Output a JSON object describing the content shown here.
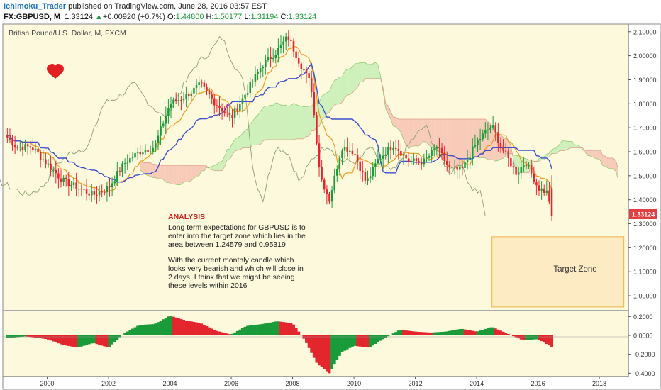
{
  "header": {
    "author": "Ichimoku_Trader",
    "published": "published on TradingView.com, June 28, 2016 03:57 EST",
    "symbol": "FX:GBPUSD, M",
    "last": "1.33124",
    "change_arrow": "▲",
    "change": "+0.00920 (+0.7%)",
    "o_label": "O:",
    "o_value": "1.44800",
    "h_label": "H:",
    "h_value": "1.50177",
    "l_label": "L:",
    "l_value": "1.31194",
    "c_label": "C:",
    "c_value": "1.33124"
  },
  "chart_data": {
    "type": "candlestick",
    "title": "British Pound/U.S. Dollar, M, FXCM",
    "x_ticks": [
      "2000",
      "2002",
      "2004",
      "2006",
      "2008",
      "2010",
      "2012",
      "2014",
      "2016",
      "2018"
    ],
    "x_range": [
      1998.6,
      2018.9
    ],
    "y_ticks": [
      "2.10000",
      "2.00000",
      "1.90000",
      "1.80000",
      "1.70000",
      "1.60000",
      "1.50000",
      "1.40000",
      "1.30000",
      "1.20000",
      "1.10000",
      "1.00000"
    ],
    "y_range": [
      0.95,
      2.12
    ],
    "price_anchors": [
      [
        1998.7,
        1.66
      ],
      [
        1999.0,
        1.62
      ],
      [
        1999.5,
        1.62
      ],
      [
        2000.0,
        1.55
      ],
      [
        2000.5,
        1.48
      ],
      [
        2001.0,
        1.45
      ],
      [
        2001.5,
        1.42
      ],
      [
        2002.0,
        1.45
      ],
      [
        2002.5,
        1.55
      ],
      [
        2003.0,
        1.6
      ],
      [
        2003.5,
        1.62
      ],
      [
        2004.0,
        1.8
      ],
      [
        2004.5,
        1.83
      ],
      [
        2005.0,
        1.88
      ],
      [
        2005.5,
        1.8
      ],
      [
        2006.0,
        1.74
      ],
      [
        2006.5,
        1.85
      ],
      [
        2007.0,
        1.96
      ],
      [
        2007.5,
        2.02
      ],
      [
        2007.85,
        2.08
      ],
      [
        2008.2,
        1.98
      ],
      [
        2008.6,
        1.88
      ],
      [
        2008.9,
        1.5
      ],
      [
        2009.2,
        1.4
      ],
      [
        2009.6,
        1.62
      ],
      [
        2010.0,
        1.6
      ],
      [
        2010.4,
        1.47
      ],
      [
        2010.8,
        1.57
      ],
      [
        2011.3,
        1.63
      ],
      [
        2011.8,
        1.56
      ],
      [
        2012.3,
        1.56
      ],
      [
        2012.7,
        1.62
      ],
      [
        2013.1,
        1.53
      ],
      [
        2013.5,
        1.52
      ],
      [
        2014.0,
        1.64
      ],
      [
        2014.5,
        1.71
      ],
      [
        2014.8,
        1.62
      ],
      [
        2015.3,
        1.51
      ],
      [
        2015.6,
        1.56
      ],
      [
        2016.0,
        1.45
      ],
      [
        2016.3,
        1.43
      ],
      [
        2016.5,
        1.33124
      ]
    ],
    "last_price_label": "1.33124",
    "target_zone": {
      "label": "Target Zone",
      "upper": 1.24579,
      "lower": 0.95319
    },
    "analysis": {
      "heading": "ANALYSIS",
      "line1": "Long term expectations for GBPUSD is to",
      "line2": "enter into the target zone which lies in the",
      "line3": "area between 1.24579 and 0.95319",
      "line4": "With the current monthly candle which",
      "line5": "looks very bearish and which will close in",
      "line6": "2 days, I think that we might be seeing",
      "line7": "these levels within 2016"
    },
    "oscillator": {
      "y_ticks": [
        "0.2000",
        "0.0000",
        "-0.2000",
        "-0.4000"
      ],
      "y_range": [
        -0.42,
        0.24
      ],
      "anchors": [
        [
          1998.7,
          -0.03
        ],
        [
          1999.3,
          -0.01
        ],
        [
          2000.0,
          -0.04
        ],
        [
          2000.5,
          -0.1
        ],
        [
          2001.0,
          -0.13
        ],
        [
          2001.5,
          -0.08
        ],
        [
          2002.0,
          -0.13
        ],
        [
          2002.5,
          0.02
        ],
        [
          2003.0,
          0.11
        ],
        [
          2003.5,
          0.12
        ],
        [
          2004.0,
          0.21
        ],
        [
          2004.5,
          0.16
        ],
        [
          2005.0,
          0.13
        ],
        [
          2005.5,
          0.05
        ],
        [
          2006.0,
          0.01
        ],
        [
          2006.5,
          0.1
        ],
        [
          2007.0,
          0.12
        ],
        [
          2007.5,
          0.15
        ],
        [
          2008.0,
          0.13
        ],
        [
          2008.4,
          -0.05
        ],
        [
          2008.8,
          -0.3
        ],
        [
          2009.2,
          -0.4
        ],
        [
          2009.6,
          -0.18
        ],
        [
          2010.0,
          -0.11
        ],
        [
          2010.5,
          -0.13
        ],
        [
          2011.0,
          -0.03
        ],
        [
          2011.5,
          0.06
        ],
        [
          2012.0,
          0.04
        ],
        [
          2012.5,
          0.03
        ],
        [
          2013.0,
          0.04
        ],
        [
          2013.5,
          0.07
        ],
        [
          2014.0,
          0.04
        ],
        [
          2014.5,
          0.09
        ],
        [
          2015.0,
          0.02
        ],
        [
          2015.5,
          -0.05
        ],
        [
          2016.0,
          -0.04
        ],
        [
          2016.5,
          -0.13
        ]
      ]
    }
  },
  "colors": {
    "background": "#fdf9dc",
    "bull": "#1a9b3a",
    "bear": "#e3262d",
    "tenkan": "#f29a1a",
    "kijun": "#3c4fcf",
    "chikou": "#8c9e6e",
    "cloud_bull": "#c6efb5",
    "cloud_bear": "#f7c3b3",
    "target_fill": "#fde9c0",
    "target_border": "#f0b24a",
    "analysis_heading": "#cc2020",
    "last_label_bg": "#e04040",
    "heart": "#e02020"
  }
}
